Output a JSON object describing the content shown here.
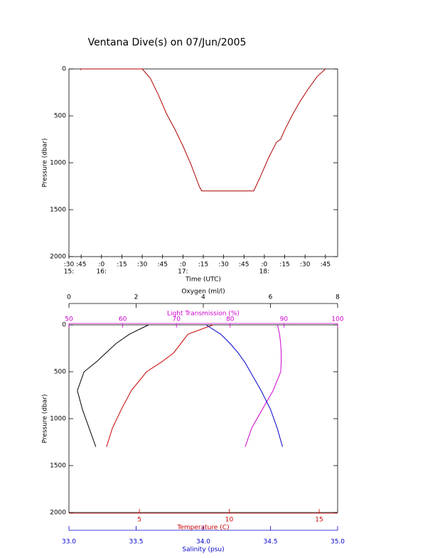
{
  "chart_data": [
    {
      "type": "line",
      "title": "Ventana Dive(s) on 07/Jun/2005",
      "xlabel": "Time (UTC)",
      "ylabel": "Pressure (dbar)",
      "ylim": [
        0,
        2000
      ],
      "y_reversed": true,
      "yticks": [
        0,
        500,
        1000,
        1500,
        2000
      ],
      "xlim": [
        15.6,
        18.9
      ],
      "xticks": [
        {
          "value": 15.6,
          "label": ":30"
        },
        {
          "value": 15.75,
          "label": ":45"
        },
        {
          "value": 16,
          "label": ":0"
        },
        {
          "value": 16.25,
          "label": ":15"
        },
        {
          "value": 16.5,
          "label": ":30"
        },
        {
          "value": 16.75,
          "label": ":45"
        },
        {
          "value": 17,
          "label": ":0"
        },
        {
          "value": 17.25,
          "label": ":15"
        },
        {
          "value": 17.5,
          "label": ":30"
        },
        {
          "value": 17.75,
          "label": ":45"
        },
        {
          "value": 18,
          "label": ":0"
        },
        {
          "value": 18.25,
          "label": ":15"
        },
        {
          "value": 18.5,
          "label": ":30"
        },
        {
          "value": 18.75,
          "label": ":45"
        }
      ],
      "xticks_hour": [
        {
          "value": 15.6,
          "label": "15:"
        },
        {
          "value": 16,
          "label": "16:"
        },
        {
          "value": 17,
          "label": "17:"
        },
        {
          "value": 18,
          "label": "18:"
        }
      ],
      "series": [
        {
          "color": "#b00000",
          "x": [
            15.74,
            15.75,
            16.5,
            16.6,
            16.7,
            16.8,
            16.9,
            17.0,
            17.1,
            17.2,
            17.23,
            17.87,
            17.95,
            18.05,
            18.15,
            18.2,
            18.25,
            18.35,
            18.45,
            18.55,
            18.65,
            18.75
          ],
          "values": [
            10,
            0,
            0,
            100,
            280,
            480,
            640,
            820,
            1020,
            1250,
            1300,
            1300,
            1150,
            950,
            780,
            750,
            650,
            480,
            330,
            200,
            80,
            0
          ]
        }
      ]
    },
    {
      "type": "profile",
      "ylabel": "Pressure (dbar)",
      "ylim": [
        0,
        2000
      ],
      "y_reversed": true,
      "yticks": [
        0,
        500,
        1000,
        1500,
        2000
      ],
      "pressure": [
        0,
        100,
        200,
        300,
        400,
        500,
        700,
        900,
        1100,
        1300
      ],
      "axes": [
        {
          "label": "Oxygen (ml/l)",
          "color": "#000000",
          "lim": [
            0,
            8
          ],
          "ticks": [
            0,
            2,
            4,
            6,
            8
          ]
        },
        {
          "label": "Light Transmission (%)",
          "color": "#cc00cc",
          "lim": [
            50,
            100
          ],
          "ticks": [
            50,
            60,
            70,
            80,
            90,
            100
          ]
        },
        {
          "label": "Temperature (C)",
          "color": "#cc0000",
          "lim": [
            1.08,
            16.03
          ],
          "ticks": [
            5,
            10,
            15
          ]
        },
        {
          "label": "Salinity (psu)",
          "color": "#0000cc",
          "lim": [
            33,
            35
          ],
          "ticks": [
            {
              "value": 33,
              "label": "33.0"
            },
            {
              "value": 33.5,
              "label": "33.5"
            },
            {
              "value": 34,
              "label": "34.0"
            },
            {
              "value": 34.5,
              "label": "34.5"
            },
            {
              "value": 35,
              "label": "35.0"
            }
          ]
        }
      ],
      "series": [
        {
          "axis": 0,
          "color": "#000000",
          "values": [
            2.37,
            1.8,
            1.4,
            1.1,
            0.8,
            0.45,
            0.25,
            0.4,
            0.6,
            0.8
          ]
        },
        {
          "axis": 1,
          "color": "#cc00cc",
          "values": [
            88.8,
            89.2,
            89.4,
            89.5,
            89.5,
            89.4,
            88,
            86,
            84,
            82.8
          ]
        },
        {
          "axis": 2,
          "color": "#cc0000",
          "values": [
            9.1,
            7.7,
            7.3,
            6.9,
            6.2,
            5.4,
            4.55,
            4.0,
            3.5,
            3.17
          ]
        },
        {
          "axis": 3,
          "color": "#0000cc",
          "values": [
            34.02,
            34.13,
            34.2,
            34.26,
            34.31,
            34.35,
            34.43,
            34.5,
            34.55,
            34.59
          ]
        }
      ]
    }
  ]
}
